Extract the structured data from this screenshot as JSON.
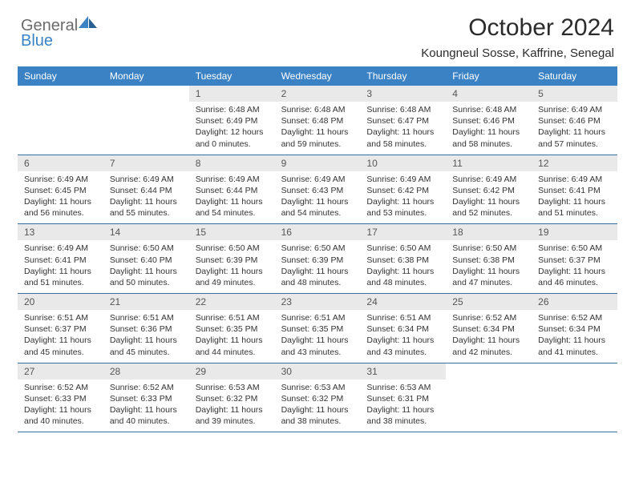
{
  "colors": {
    "header_bg": "#3b82c4",
    "header_text": "#ffffff",
    "daynum_bg": "#e9e9e9",
    "border": "#3b6ea0",
    "logo_gray": "#6b6b6b",
    "logo_blue": "#3b82c4",
    "body_text": "#333333",
    "page_bg": "#ffffff"
  },
  "logo": {
    "word1": "General",
    "word2": "Blue"
  },
  "title": "October 2024",
  "location": "Koungneul Sosse, Kaffrine, Senegal",
  "weekdays": [
    "Sunday",
    "Monday",
    "Tuesday",
    "Wednesday",
    "Thursday",
    "Friday",
    "Saturday"
  ],
  "weeks": [
    [
      null,
      null,
      {
        "n": "1",
        "sr": "Sunrise: 6:48 AM",
        "ss": "Sunset: 6:49 PM",
        "dl": "Daylight: 12 hours and 0 minutes."
      },
      {
        "n": "2",
        "sr": "Sunrise: 6:48 AM",
        "ss": "Sunset: 6:48 PM",
        "dl": "Daylight: 11 hours and 59 minutes."
      },
      {
        "n": "3",
        "sr": "Sunrise: 6:48 AM",
        "ss": "Sunset: 6:47 PM",
        "dl": "Daylight: 11 hours and 58 minutes."
      },
      {
        "n": "4",
        "sr": "Sunrise: 6:48 AM",
        "ss": "Sunset: 6:46 PM",
        "dl": "Daylight: 11 hours and 58 minutes."
      },
      {
        "n": "5",
        "sr": "Sunrise: 6:49 AM",
        "ss": "Sunset: 6:46 PM",
        "dl": "Daylight: 11 hours and 57 minutes."
      }
    ],
    [
      {
        "n": "6",
        "sr": "Sunrise: 6:49 AM",
        "ss": "Sunset: 6:45 PM",
        "dl": "Daylight: 11 hours and 56 minutes."
      },
      {
        "n": "7",
        "sr": "Sunrise: 6:49 AM",
        "ss": "Sunset: 6:44 PM",
        "dl": "Daylight: 11 hours and 55 minutes."
      },
      {
        "n": "8",
        "sr": "Sunrise: 6:49 AM",
        "ss": "Sunset: 6:44 PM",
        "dl": "Daylight: 11 hours and 54 minutes."
      },
      {
        "n": "9",
        "sr": "Sunrise: 6:49 AM",
        "ss": "Sunset: 6:43 PM",
        "dl": "Daylight: 11 hours and 54 minutes."
      },
      {
        "n": "10",
        "sr": "Sunrise: 6:49 AM",
        "ss": "Sunset: 6:42 PM",
        "dl": "Daylight: 11 hours and 53 minutes."
      },
      {
        "n": "11",
        "sr": "Sunrise: 6:49 AM",
        "ss": "Sunset: 6:42 PM",
        "dl": "Daylight: 11 hours and 52 minutes."
      },
      {
        "n": "12",
        "sr": "Sunrise: 6:49 AM",
        "ss": "Sunset: 6:41 PM",
        "dl": "Daylight: 11 hours and 51 minutes."
      }
    ],
    [
      {
        "n": "13",
        "sr": "Sunrise: 6:49 AM",
        "ss": "Sunset: 6:41 PM",
        "dl": "Daylight: 11 hours and 51 minutes."
      },
      {
        "n": "14",
        "sr": "Sunrise: 6:50 AM",
        "ss": "Sunset: 6:40 PM",
        "dl": "Daylight: 11 hours and 50 minutes."
      },
      {
        "n": "15",
        "sr": "Sunrise: 6:50 AM",
        "ss": "Sunset: 6:39 PM",
        "dl": "Daylight: 11 hours and 49 minutes."
      },
      {
        "n": "16",
        "sr": "Sunrise: 6:50 AM",
        "ss": "Sunset: 6:39 PM",
        "dl": "Daylight: 11 hours and 48 minutes."
      },
      {
        "n": "17",
        "sr": "Sunrise: 6:50 AM",
        "ss": "Sunset: 6:38 PM",
        "dl": "Daylight: 11 hours and 48 minutes."
      },
      {
        "n": "18",
        "sr": "Sunrise: 6:50 AM",
        "ss": "Sunset: 6:38 PM",
        "dl": "Daylight: 11 hours and 47 minutes."
      },
      {
        "n": "19",
        "sr": "Sunrise: 6:50 AM",
        "ss": "Sunset: 6:37 PM",
        "dl": "Daylight: 11 hours and 46 minutes."
      }
    ],
    [
      {
        "n": "20",
        "sr": "Sunrise: 6:51 AM",
        "ss": "Sunset: 6:37 PM",
        "dl": "Daylight: 11 hours and 45 minutes."
      },
      {
        "n": "21",
        "sr": "Sunrise: 6:51 AM",
        "ss": "Sunset: 6:36 PM",
        "dl": "Daylight: 11 hours and 45 minutes."
      },
      {
        "n": "22",
        "sr": "Sunrise: 6:51 AM",
        "ss": "Sunset: 6:35 PM",
        "dl": "Daylight: 11 hours and 44 minutes."
      },
      {
        "n": "23",
        "sr": "Sunrise: 6:51 AM",
        "ss": "Sunset: 6:35 PM",
        "dl": "Daylight: 11 hours and 43 minutes."
      },
      {
        "n": "24",
        "sr": "Sunrise: 6:51 AM",
        "ss": "Sunset: 6:34 PM",
        "dl": "Daylight: 11 hours and 43 minutes."
      },
      {
        "n": "25",
        "sr": "Sunrise: 6:52 AM",
        "ss": "Sunset: 6:34 PM",
        "dl": "Daylight: 11 hours and 42 minutes."
      },
      {
        "n": "26",
        "sr": "Sunrise: 6:52 AM",
        "ss": "Sunset: 6:34 PM",
        "dl": "Daylight: 11 hours and 41 minutes."
      }
    ],
    [
      {
        "n": "27",
        "sr": "Sunrise: 6:52 AM",
        "ss": "Sunset: 6:33 PM",
        "dl": "Daylight: 11 hours and 40 minutes."
      },
      {
        "n": "28",
        "sr": "Sunrise: 6:52 AM",
        "ss": "Sunset: 6:33 PM",
        "dl": "Daylight: 11 hours and 40 minutes."
      },
      {
        "n": "29",
        "sr": "Sunrise: 6:53 AM",
        "ss": "Sunset: 6:32 PM",
        "dl": "Daylight: 11 hours and 39 minutes."
      },
      {
        "n": "30",
        "sr": "Sunrise: 6:53 AM",
        "ss": "Sunset: 6:32 PM",
        "dl": "Daylight: 11 hours and 38 minutes."
      },
      {
        "n": "31",
        "sr": "Sunrise: 6:53 AM",
        "ss": "Sunset: 6:31 PM",
        "dl": "Daylight: 11 hours and 38 minutes."
      },
      null,
      null
    ]
  ]
}
